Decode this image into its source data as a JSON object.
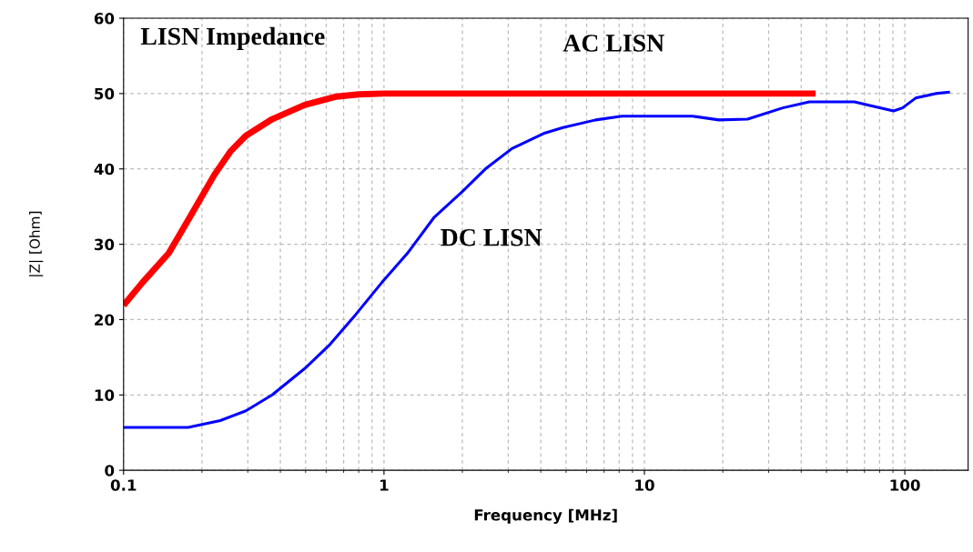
{
  "chart_data": {
    "type": "line",
    "title": "LISN Impedance",
    "xlabel": "Frequency [MHz]",
    "ylabel": "|Z| [Ohm]",
    "log": "x",
    "xlim": [
      0.1,
      175
    ],
    "xticks": [
      0.1,
      1,
      10,
      100
    ],
    "ylim": [
      0,
      60
    ],
    "yticks": [
      0,
      10,
      20,
      30,
      40,
      50,
      60
    ],
    "grid": true,
    "legend": false,
    "line_style": "solid",
    "marker": "none",
    "series": [
      {
        "name": "AC LISN",
        "color": "#ff0000",
        "x": [
          0.1,
          0.118,
          0.149,
          0.177,
          0.223,
          0.257,
          0.295,
          0.372,
          0.496,
          0.657,
          0.8,
          1,
          45.4
        ],
        "values": [
          21.9,
          24.9,
          28.8,
          33.2,
          39.2,
          42.3,
          44.4,
          46.6,
          48.5,
          49.6,
          49.9,
          50,
          50
        ]
      },
      {
        "name": "DC LISN",
        "color": "#0000ff",
        "x": [
          0.1,
          0.177,
          0.235,
          0.295,
          0.372,
          0.496,
          0.62,
          0.78,
          0.98,
          1.23,
          1.56,
          2.0,
          2.47,
          3.1,
          4.1,
          4.87,
          6.5,
          8.2,
          15.3,
          19.3,
          24.9,
          34,
          43,
          64,
          74,
          90.5,
          98,
          110,
          131,
          149
        ],
        "values": [
          5.7,
          5.7,
          6.6,
          7.9,
          10.0,
          13.5,
          16.7,
          20.7,
          24.9,
          28.8,
          33.6,
          37.0,
          40.1,
          42.7,
          44.7,
          45.5,
          46.5,
          47.0,
          47.0,
          46.5,
          46.6,
          48.1,
          48.9,
          48.9,
          48.4,
          47.7,
          48.1,
          49.4,
          50.0,
          50.2
        ]
      }
    ]
  }
}
